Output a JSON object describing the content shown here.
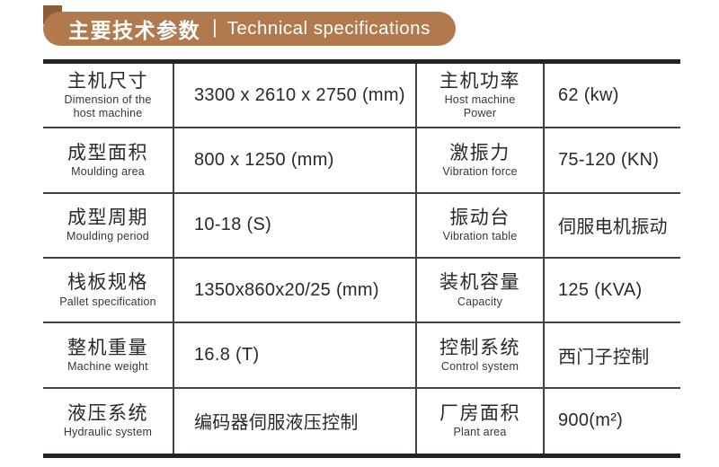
{
  "header": {
    "title_zh": "主要技术参数",
    "separator": "|",
    "title_en": "Technical specifications",
    "banner_color": "#b1794e",
    "accent_square_color": "#8c5c38",
    "text_color": "#ffffff"
  },
  "table": {
    "border_color": "#272220",
    "text_color": "#2b2826",
    "rows": [
      {
        "label1_zh": "主机尺寸",
        "label1_en": "Dimension of the\nhost machine",
        "value1": "3300 x 2610 x 2750 (mm)",
        "label2_zh": "主机功率",
        "label2_en": "Host machine\nPower",
        "value2": "62 (kw)"
      },
      {
        "label1_zh": "成型面积",
        "label1_en": "Moulding area",
        "value1": "800 x 1250 (mm)",
        "label2_zh": "激振力",
        "label2_en": "Vibration force",
        "value2": "75-120 (KN)"
      },
      {
        "label1_zh": "成型周期",
        "label1_en": "Moulding period",
        "value1": "10-18 (S)",
        "label2_zh": "振动台",
        "label2_en": "Vibration table",
        "value2": "伺服电机振动"
      },
      {
        "label1_zh": "栈板规格",
        "label1_en": "Pallet specification",
        "value1": "1350x860x20/25 (mm)",
        "label2_zh": "装机容量",
        "label2_en": "Capacity",
        "value2": "125 (KVA)"
      },
      {
        "label1_zh": "整机重量",
        "label1_en": "Machine weight",
        "value1": "16.8 (T)",
        "label2_zh": "控制系统",
        "label2_en": "Control system",
        "value2": "西门子控制"
      },
      {
        "label1_zh": "液压系统",
        "label1_en": "Hydraulic system",
        "value1": "编码器伺服液压控制",
        "label2_zh": "厂房面积",
        "label2_en": "Plant area",
        "value2": "900(m²)"
      }
    ]
  }
}
